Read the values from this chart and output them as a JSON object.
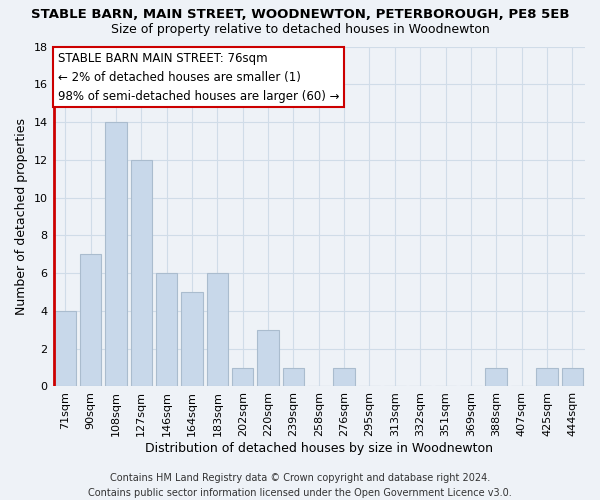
{
  "title": "STABLE BARN, MAIN STREET, WOODNEWTON, PETERBOROUGH, PE8 5EB",
  "subtitle": "Size of property relative to detached houses in Woodnewton",
  "xlabel": "Distribution of detached houses by size in Woodnewton",
  "ylabel": "Number of detached properties",
  "bar_labels": [
    "71sqm",
    "90sqm",
    "108sqm",
    "127sqm",
    "146sqm",
    "164sqm",
    "183sqm",
    "202sqm",
    "220sqm",
    "239sqm",
    "258sqm",
    "276sqm",
    "295sqm",
    "313sqm",
    "332sqm",
    "351sqm",
    "369sqm",
    "388sqm",
    "407sqm",
    "425sqm",
    "444sqm"
  ],
  "bar_values": [
    4,
    7,
    14,
    12,
    6,
    5,
    6,
    1,
    3,
    1,
    0,
    1,
    0,
    0,
    0,
    0,
    0,
    1,
    0,
    1,
    1
  ],
  "bar_color": "#c8d8ea",
  "bar_edge_color": "#aabcce",
  "highlight_bar_index": 0,
  "highlight_edge_color": "#cc0000",
  "ylim": [
    0,
    18
  ],
  "yticks": [
    0,
    2,
    4,
    6,
    8,
    10,
    12,
    14,
    16,
    18
  ],
  "annotation_title": "STABLE BARN MAIN STREET: 76sqm",
  "annotation_line1": "← 2% of detached houses are smaller (1)",
  "annotation_line2": "98% of semi-detached houses are larger (60) →",
  "footer_line1": "Contains HM Land Registry data © Crown copyright and database right 2024.",
  "footer_line2": "Contains public sector information licensed under the Open Government Licence v3.0.",
  "grid_color": "#d0dce8",
  "background_color": "#eef2f7",
  "title_fontsize": 9.5,
  "subtitle_fontsize": 9.0,
  "tick_fontsize": 8.0,
  "label_fontsize": 9.0,
  "annotation_fontsize": 8.5,
  "footer_fontsize": 7.0
}
